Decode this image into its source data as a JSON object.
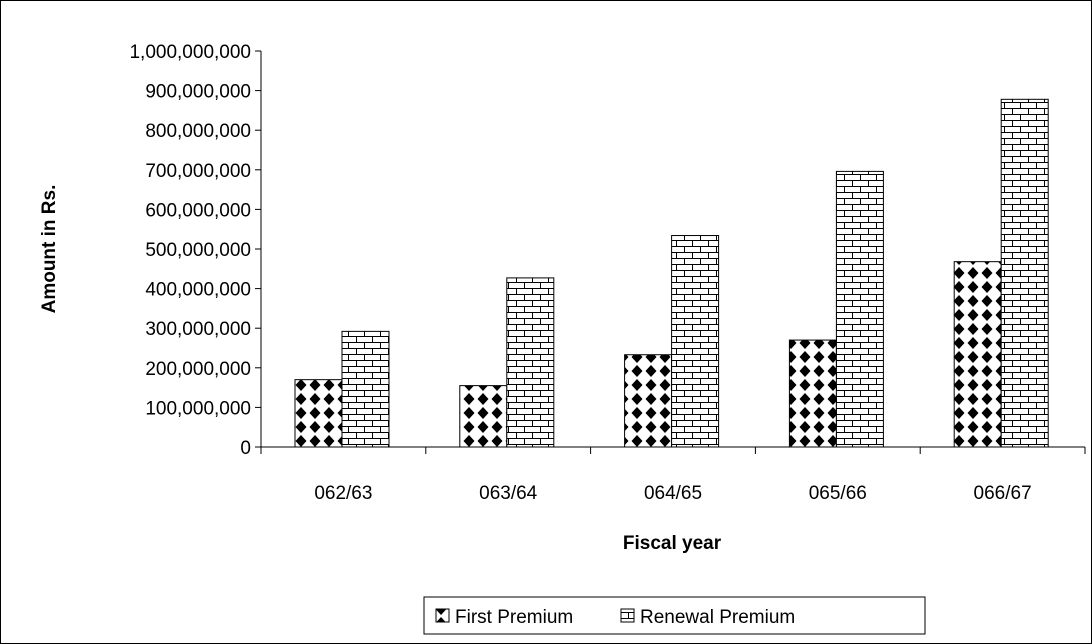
{
  "chart_data": {
    "type": "bar",
    "title": "",
    "xlabel": "Fiscal year",
    "ylabel": "Amount in Rs.",
    "categories": [
      "062/63",
      "063/64",
      "064/65",
      "065/66",
      "066/67"
    ],
    "series": [
      {
        "name": "First Premium",
        "values": [
          170000000,
          155000000,
          233000000,
          270000000,
          468000000
        ],
        "pattern": "diamond-dots"
      },
      {
        "name": "Renewal Premium",
        "values": [
          292000000,
          427000000,
          534000000,
          696000000,
          878000000
        ],
        "pattern": "brick"
      }
    ],
    "ylim": [
      0,
      1000000000
    ],
    "yticks": [
      0,
      100000000,
      200000000,
      300000000,
      400000000,
      500000000,
      600000000,
      700000000,
      800000000,
      900000000,
      1000000000
    ],
    "ytick_labels": [
      "0",
      "100,000,000",
      "200,000,000",
      "300,000,000",
      "400,000,000",
      "500,000,000",
      "600,000,000",
      "700,000,000",
      "800,000,000",
      "900,000,000",
      "1,000,000,000"
    ],
    "grid": false,
    "legend_position": "bottom",
    "colors": {
      "bar_fill": "#ffffff",
      "pattern_ink": "#000000",
      "stroke": "#000000"
    }
  }
}
